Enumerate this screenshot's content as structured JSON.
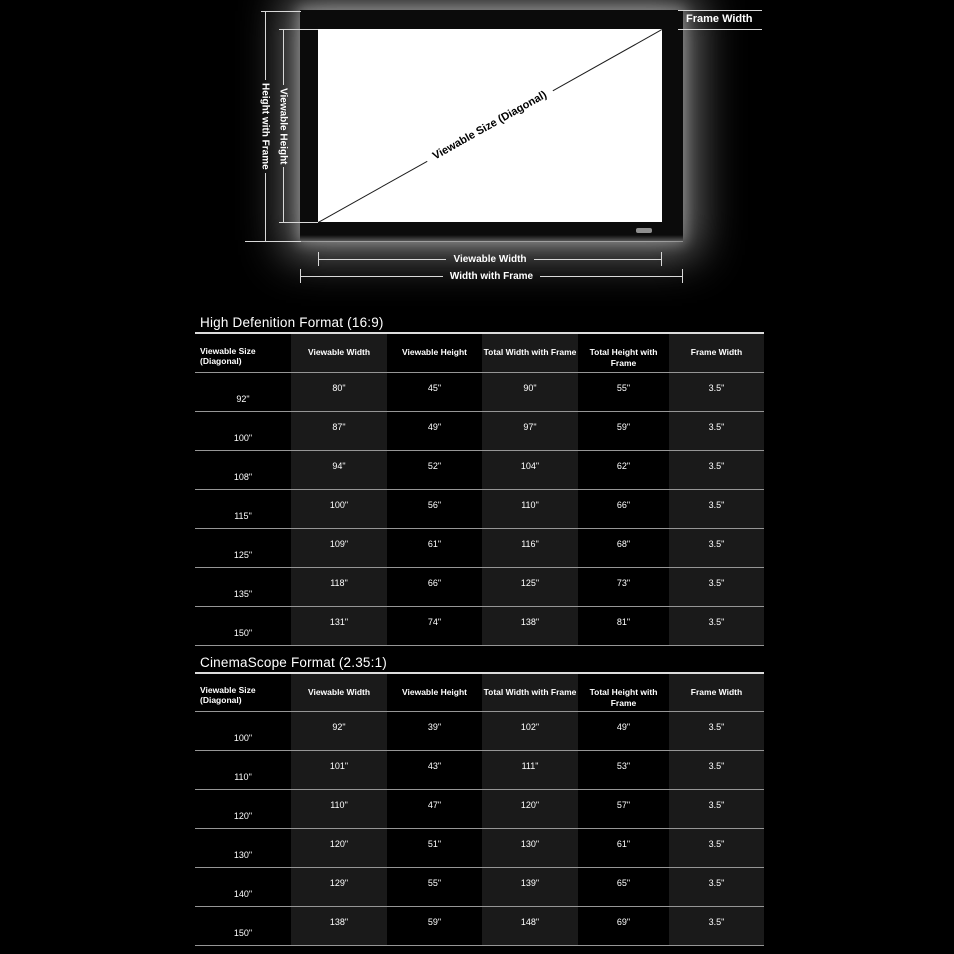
{
  "diagram": {
    "frame_width_label": "Frame Width",
    "height_with_frame_label": "Height with Frame",
    "viewable_height_label": "Viewable Height",
    "diagonal_label": "Viewable Size (Diagonal)",
    "viewable_width_label": "Viewable Width",
    "width_with_frame_label": "Width with Frame"
  },
  "tables": [
    {
      "title": "High Defenition Format (16:9)",
      "headers": [
        "Viewable Size (Diagonal)",
        "Viewable Width",
        "Viewable Height",
        "Total Width with Frame",
        "Total Height with Frame",
        "Frame Width"
      ],
      "rows": [
        [
          "92\"",
          "80\"",
          "45\"",
          "90\"",
          "55\"",
          "3.5\""
        ],
        [
          "100\"",
          "87\"",
          "49\"",
          "97\"",
          "59\"",
          "3.5\""
        ],
        [
          "108\"",
          "94\"",
          "52\"",
          "104\"",
          "62\"",
          "3.5\""
        ],
        [
          "115\"",
          "100\"",
          "56\"",
          "110\"",
          "66\"",
          "3.5\""
        ],
        [
          "125\"",
          "109\"",
          "61\"",
          "116\"",
          "68\"",
          "3.5\""
        ],
        [
          "135\"",
          "118\"",
          "66\"",
          "125\"",
          "73\"",
          "3.5\""
        ],
        [
          "150\"",
          "131\"",
          "74\"",
          "138\"",
          "81\"",
          "3.5\""
        ]
      ]
    },
    {
      "title": "CinemaScope Format (2.35:1)",
      "headers": [
        "Viewable Size (Diagonal)",
        "Viewable Width",
        "Viewable Height",
        "Total Width with Frame",
        "Total Height with Frame",
        "Frame Width"
      ],
      "rows": [
        [
          "100\"",
          "92\"",
          "39\"",
          "102\"",
          "49\"",
          "3.5\""
        ],
        [
          "110\"",
          "101\"",
          "43\"",
          "111\"",
          "53\"",
          "3.5\""
        ],
        [
          "120\"",
          "110\"",
          "47\"",
          "120\"",
          "57\"",
          "3.5\""
        ],
        [
          "130\"",
          "120\"",
          "51\"",
          "130\"",
          "61\"",
          "3.5\""
        ],
        [
          "140\"",
          "129\"",
          "55\"",
          "139\"",
          "65\"",
          "3.5\""
        ],
        [
          "150\"",
          "138\"",
          "59\"",
          "148\"",
          "69\"",
          "3.5\""
        ]
      ]
    }
  ],
  "colors": {
    "background": "#000000",
    "alt_column": "#1a1a1a",
    "row_separator": "#969696",
    "text": "#ffffff",
    "screen_surface": "#ffffff",
    "frame_glow": "#ffffff",
    "measure_line": "#d9d9d9"
  }
}
